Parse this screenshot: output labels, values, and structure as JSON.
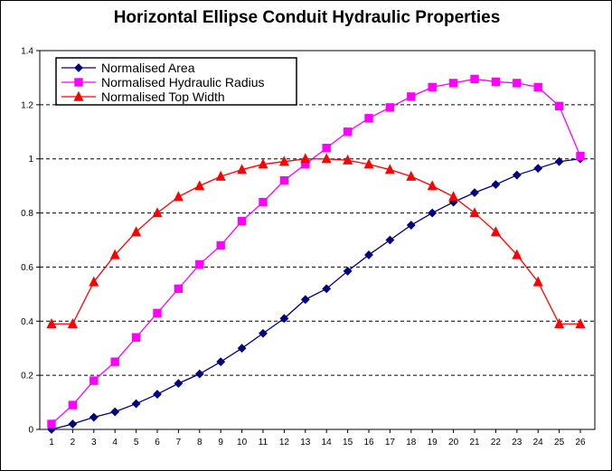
{
  "chart_data": {
    "type": "line",
    "title": "Horizontal Ellipse Conduit Hydraulic Properties",
    "xlabel": "",
    "ylabel": "",
    "x": [
      1,
      2,
      3,
      4,
      5,
      6,
      7,
      8,
      9,
      10,
      11,
      12,
      13,
      14,
      15,
      16,
      17,
      18,
      19,
      20,
      21,
      22,
      23,
      24,
      25,
      26
    ],
    "ylim": [
      0,
      1.4
    ],
    "yticks": [
      "0",
      "0.2",
      "0.4",
      "0.6",
      "0.8",
      "1",
      "1.2",
      "1.4"
    ],
    "grid": "horizontal-dashed",
    "legend_position": "top-left",
    "series": [
      {
        "name": "Normalised Area",
        "color": "#000080",
        "marker": "diamond",
        "values": [
          0.0,
          0.02,
          0.045,
          0.065,
          0.095,
          0.13,
          0.17,
          0.205,
          0.25,
          0.3,
          0.355,
          0.41,
          0.48,
          0.52,
          0.585,
          0.645,
          0.7,
          0.755,
          0.8,
          0.84,
          0.875,
          0.905,
          0.94,
          0.965,
          0.99,
          1.0
        ]
      },
      {
        "name": "Normalised Hydraulic Radius",
        "color": "#ff00ff",
        "marker": "square",
        "values": [
          0.02,
          0.09,
          0.18,
          0.25,
          0.34,
          0.43,
          0.52,
          0.61,
          0.68,
          0.77,
          0.84,
          0.92,
          0.98,
          1.04,
          1.1,
          1.15,
          1.19,
          1.23,
          1.265,
          1.28,
          1.295,
          1.285,
          1.28,
          1.265,
          1.195,
          1.01
        ]
      },
      {
        "name": "Normalised Top Width",
        "color": "#ff0000",
        "marker": "triangle",
        "values": [
          0.39,
          0.39,
          0.545,
          0.645,
          0.73,
          0.8,
          0.86,
          0.9,
          0.935,
          0.96,
          0.98,
          0.99,
          1.0,
          1.0,
          0.995,
          0.98,
          0.96,
          0.935,
          0.9,
          0.86,
          0.8,
          0.73,
          0.645,
          0.545,
          0.39,
          0.39
        ]
      }
    ]
  }
}
